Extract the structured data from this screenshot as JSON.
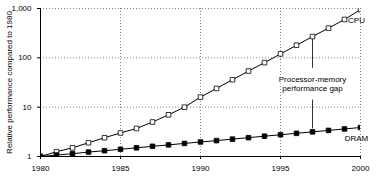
{
  "chart_data": {
    "type": "line",
    "ylabel": "Relative performance compared to 1980",
    "x": [
      1980,
      1981,
      1982,
      1983,
      1984,
      1985,
      1986,
      1987,
      1988,
      1989,
      1990,
      1991,
      1992,
      1993,
      1994,
      1995,
      1996,
      1997,
      1998,
      1999,
      2000
    ],
    "series": [
      {
        "name": "CPU",
        "color": "#000000",
        "marker": "square-open",
        "values": [
          1,
          1.25,
          1.5,
          1.9,
          2.4,
          3,
          3.7,
          5,
          7,
          10,
          16,
          24,
          36,
          54,
          80,
          120,
          180,
          270,
          400,
          600,
          950
        ]
      },
      {
        "name": "DRAM",
        "color": "#000000",
        "marker": "square",
        "values": [
          1,
          1.07,
          1.14,
          1.23,
          1.31,
          1.4,
          1.5,
          1.61,
          1.72,
          1.84,
          1.97,
          2.1,
          2.25,
          2.41,
          2.58,
          2.76,
          2.95,
          3.16,
          3.38,
          3.62,
          3.87
        ]
      }
    ],
    "annotations": [
      "Processor-memory",
      "performance gap"
    ],
    "xlim": [
      1980,
      2000
    ],
    "xticks": [
      1980,
      1985,
      1990,
      1995,
      2000
    ],
    "ylim": [
      1,
      1000
    ],
    "yticks": [
      1,
      10,
      100,
      {
        "value": 1000,
        "label": "1,000"
      }
    ],
    "log": "y",
    "grid": true
  }
}
